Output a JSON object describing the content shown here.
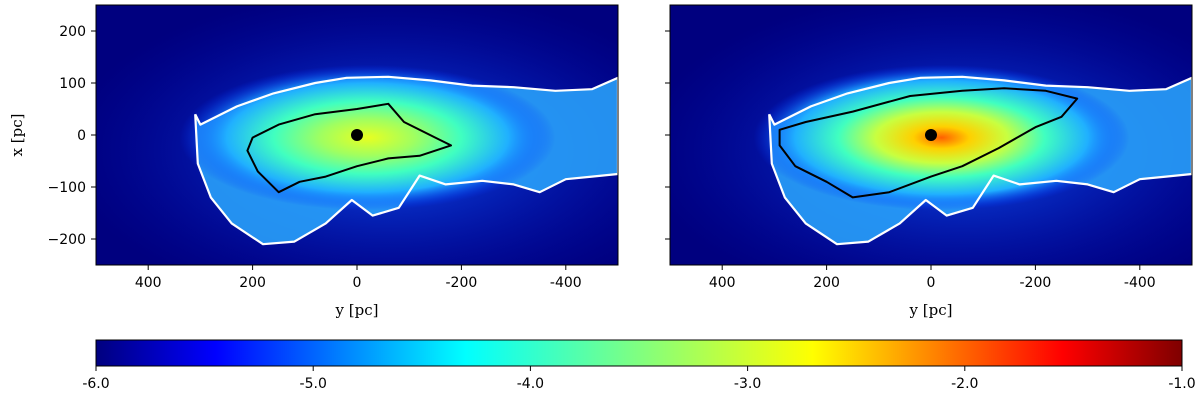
{
  "chart_data": {
    "type": "heatmap",
    "panels": [
      {
        "name": "left",
        "xlabel": "y [pc]",
        "ylabel": "x [pc]",
        "xlim": [
          500,
          -500
        ],
        "ylim": [
          -250,
          250
        ],
        "xticks": [
          400,
          200,
          0,
          -200,
          -400
        ],
        "xtick_labels": [
          "400",
          "200",
          "0",
          "-200",
          "-400"
        ],
        "yticks": [
          200,
          100,
          0,
          -100,
          -200
        ],
        "ytick_labels": [
          "200",
          "100",
          "0",
          "−100",
          "−200"
        ],
        "marker": {
          "y": 0,
          "x": 0
        },
        "white_contour": [
          [
            310,
            40
          ],
          [
            300,
            20
          ],
          [
            230,
            55
          ],
          [
            160,
            80
          ],
          [
            80,
            100
          ],
          [
            20,
            110
          ],
          [
            -60,
            112
          ],
          [
            -140,
            105
          ],
          [
            -220,
            95
          ],
          [
            -300,
            92
          ],
          [
            -380,
            85
          ],
          [
            -450,
            88
          ],
          [
            -500,
            110
          ],
          [
            -500,
            -75
          ],
          [
            -450,
            -80
          ],
          [
            -400,
            -85
          ],
          [
            -350,
            -110
          ],
          [
            -300,
            -95
          ],
          [
            -240,
            -88
          ],
          [
            -170,
            -95
          ],
          [
            -120,
            -78
          ],
          [
            -80,
            -140
          ],
          [
            -30,
            -155
          ],
          [
            10,
            -125
          ],
          [
            60,
            -170
          ],
          [
            120,
            -205
          ],
          [
            180,
            -210
          ],
          [
            240,
            -170
          ],
          [
            280,
            -120
          ],
          [
            305,
            -55
          ],
          [
            310,
            40
          ]
        ],
        "black_contour": [
          [
            200,
            -5
          ],
          [
            150,
            20
          ],
          [
            80,
            40
          ],
          [
            0,
            50
          ],
          [
            -60,
            60
          ],
          [
            -90,
            25
          ],
          [
            -150,
            -5
          ],
          [
            -180,
            -20
          ],
          [
            -120,
            -40
          ],
          [
            -60,
            -45
          ],
          [
            0,
            -60
          ],
          [
            60,
            -80
          ],
          [
            110,
            -90
          ],
          [
            150,
            -110
          ],
          [
            190,
            -70
          ],
          [
            210,
            -30
          ],
          [
            200,
            -5
          ]
        ]
      },
      {
        "name": "right",
        "xlabel": "y [pc]",
        "ylabel": "",
        "xlim": [
          500,
          -500
        ],
        "ylim": [
          -250,
          250
        ],
        "xticks": [
          400,
          200,
          0,
          -200,
          -400
        ],
        "xtick_labels": [
          "400",
          "200",
          "0",
          "-200",
          "-400"
        ],
        "yticks": [
          200,
          100,
          0,
          -100,
          -200
        ],
        "ytick_labels": [],
        "marker": {
          "y": 0,
          "x": 0
        },
        "white_contour": [
          [
            310,
            40
          ],
          [
            300,
            20
          ],
          [
            230,
            55
          ],
          [
            160,
            80
          ],
          [
            80,
            100
          ],
          [
            20,
            110
          ],
          [
            -60,
            112
          ],
          [
            -140,
            105
          ],
          [
            -220,
            95
          ],
          [
            -300,
            92
          ],
          [
            -380,
            85
          ],
          [
            -450,
            88
          ],
          [
            -500,
            110
          ],
          [
            -500,
            -75
          ],
          [
            -450,
            -80
          ],
          [
            -400,
            -85
          ],
          [
            -350,
            -110
          ],
          [
            -300,
            -95
          ],
          [
            -240,
            -88
          ],
          [
            -170,
            -95
          ],
          [
            -120,
            -78
          ],
          [
            -80,
            -140
          ],
          [
            -30,
            -155
          ],
          [
            10,
            -125
          ],
          [
            60,
            -170
          ],
          [
            120,
            -205
          ],
          [
            180,
            -210
          ],
          [
            240,
            -170
          ],
          [
            280,
            -120
          ],
          [
            305,
            -55
          ],
          [
            310,
            40
          ]
        ],
        "black_contour": [
          [
            290,
            10
          ],
          [
            240,
            25
          ],
          [
            150,
            45
          ],
          [
            40,
            75
          ],
          [
            -60,
            85
          ],
          [
            -140,
            90
          ],
          [
            -220,
            85
          ],
          [
            -280,
            70
          ],
          [
            -250,
            35
          ],
          [
            -200,
            15
          ],
          [
            -130,
            -25
          ],
          [
            -60,
            -60
          ],
          [
            0,
            -80
          ],
          [
            80,
            -110
          ],
          [
            150,
            -120
          ],
          [
            200,
            -90
          ],
          [
            260,
            -60
          ],
          [
            290,
            -20
          ],
          [
            290,
            10
          ]
        ]
      }
    ],
    "colorbar": {
      "range": [
        -6.0,
        -1.0
      ],
      "ticks": [
        -6.0,
        -5.0,
        -4.0,
        -3.0,
        -2.0,
        -1.0
      ],
      "tick_labels": [
        "-6.0",
        "-5.0",
        "-4.0",
        "-3.0",
        "-2.0",
        "-1.0"
      ],
      "colormap": "jet"
    },
    "colors": {
      "background": "#00007f",
      "white_contour": "#ffffff",
      "black_contour": "#000000",
      "marker": "#000000"
    }
  }
}
